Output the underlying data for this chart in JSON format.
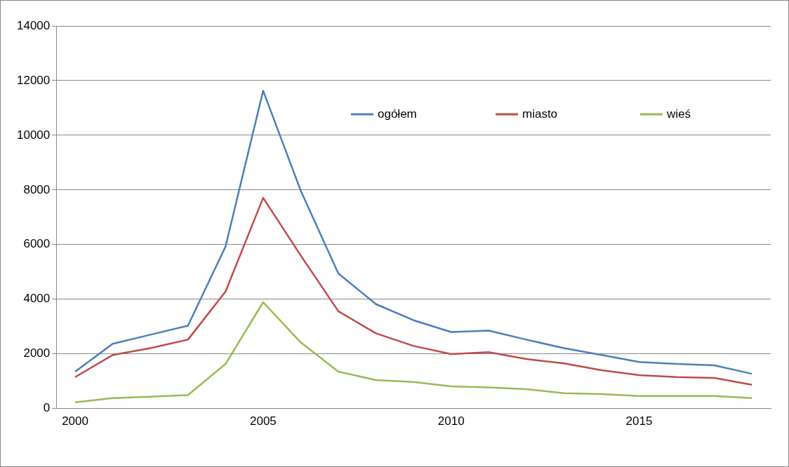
{
  "chart_data": {
    "type": "line",
    "categories": [
      "2000",
      null,
      null,
      null,
      null,
      "2005",
      null,
      null,
      null,
      null,
      "2010",
      null,
      null,
      null,
      null,
      "2015",
      null,
      null,
      null
    ],
    "series": [
      {
        "name": "ogółem",
        "color": "#4a7ebb",
        "values": [
          1350,
          2370,
          2700,
          3030,
          5930,
          11630,
          7970,
          4940,
          3820,
          3230,
          2800,
          2850,
          2520,
          2210,
          1960,
          1700,
          1630,
          1580,
          1270
        ]
      },
      {
        "name": "miasto",
        "color": "#be4b48",
        "values": [
          1150,
          1960,
          2210,
          2520,
          4280,
          7710,
          5600,
          3560,
          2750,
          2290,
          1990,
          2060,
          1810,
          1650,
          1400,
          1220,
          1150,
          1120,
          870
        ]
      },
      {
        "name": "wieś",
        "color": "#98b954",
        "values": [
          230,
          380,
          430,
          490,
          1630,
          3890,
          2420,
          1350,
          1040,
          970,
          810,
          770,
          710,
          560,
          530,
          460,
          460,
          460,
          380
        ]
      }
    ],
    "ylim": [
      0,
      14000
    ],
    "yticks": [
      0,
      2000,
      4000,
      6000,
      8000,
      10000,
      12000,
      14000
    ],
    "grid": "y",
    "legend": "top right",
    "marker": "none"
  }
}
